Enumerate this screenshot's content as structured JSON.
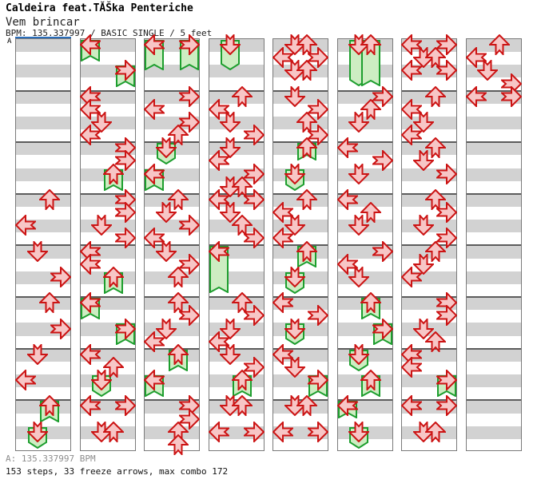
{
  "header": {
    "title": "Caldeira feat.TĂŠka Penteriche",
    "subtitle": "Vem brincar",
    "info_line": "BPM: 135.337997 / BASIC SINGLE / 5 feet"
  },
  "section_marker": {
    "label": "A"
  },
  "footer": {
    "bpm_line": "A: 135.337997 BPM",
    "stats_line": "153 steps, 33 freeze arrows, max combo 172"
  },
  "colors": {
    "band_gray": "#d2d2d2",
    "column_border": "#7a7a7a",
    "measure_line": "#5c5c5c",
    "section_a_blue": "#2a6ebb",
    "tap_fill": "#f7c6c6",
    "tap_border": "#cc1414",
    "freeze_fill": "#cdedc2",
    "freeze_border": "#1d9e2e",
    "footer_gray": "#8d8d8d"
  },
  "chart_data": {
    "type": "ddr-step-chart",
    "title": "Vem brincar",
    "artist": "Caldeira feat.TĂŠka Penteriche",
    "bpm": "135.337997",
    "difficulty": "BASIC SINGLE",
    "feet": 5,
    "steps": 153,
    "freeze_arrows": 33,
    "max_combo": 172,
    "columns": 8,
    "bands_per_column": 32,
    "beats_per_measure": 4,
    "lanes": [
      "left",
      "down",
      "up",
      "right"
    ],
    "note_format": "[column, band, lane, type(0=tap,1=freeze), tail_length_bands]",
    "notes": [
      [
        0,
        12,
        2,
        0
      ],
      [
        0,
        14,
        0,
        0
      ],
      [
        0,
        16,
        1,
        0
      ],
      [
        0,
        18,
        3,
        0
      ],
      [
        0,
        20,
        2,
        0
      ],
      [
        0,
        22,
        3,
        0
      ],
      [
        0,
        24,
        1,
        0
      ],
      [
        0,
        26,
        0,
        0
      ],
      [
        0,
        28,
        2,
        1,
        1.8
      ],
      [
        0,
        30,
        1,
        1,
        1.8
      ],
      [
        1,
        0,
        0,
        1,
        1.8
      ],
      [
        1,
        2,
        3,
        1,
        1.8
      ],
      [
        1,
        4,
        0,
        0
      ],
      [
        1,
        5,
        0,
        0
      ],
      [
        1,
        6,
        1,
        0
      ],
      [
        1,
        7,
        0,
        0
      ],
      [
        1,
        8,
        3,
        0
      ],
      [
        1,
        9,
        3,
        0
      ],
      [
        1,
        10,
        2,
        1,
        1.8
      ],
      [
        1,
        12,
        3,
        0
      ],
      [
        1,
        13,
        3,
        0
      ],
      [
        1,
        14,
        1,
        0
      ],
      [
        1,
        15,
        3,
        0
      ],
      [
        1,
        16,
        0,
        0
      ],
      [
        1,
        17,
        0,
        0
      ],
      [
        1,
        18,
        2,
        1,
        1.8
      ],
      [
        1,
        20,
        0,
        1,
        1.8
      ],
      [
        1,
        22,
        3,
        1,
        1.8
      ],
      [
        1,
        24,
        0,
        0
      ],
      [
        1,
        25,
        2,
        0
      ],
      [
        1,
        26,
        1,
        1,
        1.8
      ],
      [
        1,
        28,
        0,
        0
      ],
      [
        1,
        28,
        3,
        0
      ],
      [
        1,
        30,
        1,
        0
      ],
      [
        1,
        30,
        2,
        0
      ],
      [
        2,
        0,
        0,
        1,
        2.5
      ],
      [
        2,
        0,
        3,
        1,
        2.5
      ],
      [
        2,
        4,
        3,
        0
      ],
      [
        2,
        5,
        0,
        0
      ],
      [
        2,
        6,
        3,
        0
      ],
      [
        2,
        7,
        2,
        0
      ],
      [
        2,
        8,
        1,
        1,
        1.8
      ],
      [
        2,
        10,
        0,
        1,
        1.8
      ],
      [
        2,
        12,
        2,
        0
      ],
      [
        2,
        13,
        1,
        0
      ],
      [
        2,
        14,
        3,
        0
      ],
      [
        2,
        15,
        0,
        0
      ],
      [
        2,
        16,
        1,
        0
      ],
      [
        2,
        17,
        3,
        0
      ],
      [
        2,
        18,
        2,
        0
      ],
      [
        2,
        20,
        2,
        0
      ],
      [
        2,
        21,
        3,
        0
      ],
      [
        2,
        22,
        1,
        0
      ],
      [
        2,
        23,
        0,
        0
      ],
      [
        2,
        24,
        2,
        1,
        1.8
      ],
      [
        2,
        26,
        0,
        1,
        1.8
      ],
      [
        2,
        28,
        3,
        0
      ],
      [
        2,
        29,
        3,
        0
      ],
      [
        2,
        30,
        2,
        0
      ],
      [
        2,
        31,
        2,
        0
      ],
      [
        3,
        0,
        1,
        1,
        2.5
      ],
      [
        3,
        4,
        2,
        0
      ],
      [
        3,
        5,
        0,
        0
      ],
      [
        3,
        6,
        1,
        0
      ],
      [
        3,
        7,
        3,
        0
      ],
      [
        3,
        8,
        1,
        0
      ],
      [
        3,
        9,
        0,
        0
      ],
      [
        3,
        10,
        3,
        0
      ],
      [
        3,
        11,
        1,
        0
      ],
      [
        3,
        11,
        2,
        0
      ],
      [
        3,
        12,
        0,
        0
      ],
      [
        3,
        12,
        3,
        0
      ],
      [
        3,
        13,
        1,
        0
      ],
      [
        3,
        14,
        2,
        0
      ],
      [
        3,
        15,
        3,
        0
      ],
      [
        3,
        16,
        0,
        1,
        3.8
      ],
      [
        3,
        20,
        2,
        0
      ],
      [
        3,
        21,
        3,
        0
      ],
      [
        3,
        22,
        1,
        0
      ],
      [
        3,
        23,
        0,
        0
      ],
      [
        3,
        24,
        1,
        0
      ],
      [
        3,
        25,
        3,
        0
      ],
      [
        3,
        26,
        2,
        1,
        1.8
      ],
      [
        3,
        28,
        1,
        0
      ],
      [
        3,
        28,
        2,
        0
      ],
      [
        3,
        30,
        0,
        0
      ],
      [
        3,
        30,
        3,
        0
      ],
      [
        4,
        0,
        1,
        0
      ],
      [
        4,
        0,
        2,
        0
      ],
      [
        4,
        1,
        0,
        0
      ],
      [
        4,
        1,
        3,
        0
      ],
      [
        4,
        2,
        1,
        0
      ],
      [
        4,
        2,
        2,
        0
      ],
      [
        4,
        4,
        1,
        0
      ],
      [
        4,
        5,
        3,
        0
      ],
      [
        4,
        6,
        2,
        0
      ],
      [
        4,
        7,
        3,
        0
      ],
      [
        4,
        8,
        2,
        1,
        1.5
      ],
      [
        4,
        10,
        1,
        1,
        1.8
      ],
      [
        4,
        12,
        2,
        0
      ],
      [
        4,
        13,
        0,
        0
      ],
      [
        4,
        14,
        1,
        0
      ],
      [
        4,
        15,
        0,
        0
      ],
      [
        4,
        16,
        2,
        1,
        1.8
      ],
      [
        4,
        18,
        1,
        1,
        1.8
      ],
      [
        4,
        20,
        0,
        0
      ],
      [
        4,
        21,
        3,
        0
      ],
      [
        4,
        22,
        1,
        1,
        1.8
      ],
      [
        4,
        24,
        0,
        0
      ],
      [
        4,
        25,
        1,
        0
      ],
      [
        4,
        26,
        3,
        1,
        1.8
      ],
      [
        4,
        28,
        1,
        0
      ],
      [
        4,
        28,
        2,
        0
      ],
      [
        4,
        30,
        0,
        0
      ],
      [
        4,
        30,
        3,
        0
      ],
      [
        5,
        0,
        1,
        1,
        3.7
      ],
      [
        5,
        0,
        2,
        1,
        3.7
      ],
      [
        5,
        4,
        3,
        0
      ],
      [
        5,
        5,
        2,
        0
      ],
      [
        5,
        6,
        1,
        0
      ],
      [
        5,
        8,
        0,
        0
      ],
      [
        5,
        9,
        3,
        0
      ],
      [
        5,
        10,
        1,
        0
      ],
      [
        5,
        12,
        0,
        0
      ],
      [
        5,
        13,
        2,
        0
      ],
      [
        5,
        14,
        1,
        0
      ],
      [
        5,
        16,
        3,
        0
      ],
      [
        5,
        17,
        0,
        0
      ],
      [
        5,
        18,
        1,
        0
      ],
      [
        5,
        20,
        2,
        1,
        1.8
      ],
      [
        5,
        22,
        3,
        1,
        1.8
      ],
      [
        5,
        24,
        1,
        1,
        1.8
      ],
      [
        5,
        26,
        2,
        1,
        1.8
      ],
      [
        5,
        28,
        0,
        1,
        1.5
      ],
      [
        5,
        30,
        1,
        1,
        1.8
      ],
      [
        6,
        0,
        0,
        0
      ],
      [
        6,
        0,
        3,
        0
      ],
      [
        6,
        1,
        1,
        0
      ],
      [
        6,
        1,
        2,
        0
      ],
      [
        6,
        2,
        0,
        0
      ],
      [
        6,
        2,
        3,
        0
      ],
      [
        6,
        4,
        2,
        0
      ],
      [
        6,
        5,
        0,
        0
      ],
      [
        6,
        6,
        1,
        0
      ],
      [
        6,
        7,
        0,
        0
      ],
      [
        6,
        8,
        2,
        0
      ],
      [
        6,
        9,
        1,
        0
      ],
      [
        6,
        10,
        3,
        0
      ],
      [
        6,
        12,
        2,
        0
      ],
      [
        6,
        13,
        3,
        0
      ],
      [
        6,
        14,
        1,
        0
      ],
      [
        6,
        15,
        3,
        0
      ],
      [
        6,
        16,
        2,
        0
      ],
      [
        6,
        17,
        1,
        0
      ],
      [
        6,
        18,
        0,
        0
      ],
      [
        6,
        20,
        3,
        0
      ],
      [
        6,
        21,
        3,
        0
      ],
      [
        6,
        22,
        1,
        0
      ],
      [
        6,
        23,
        2,
        0
      ],
      [
        6,
        24,
        0,
        0
      ],
      [
        6,
        25,
        0,
        0
      ],
      [
        6,
        26,
        3,
        1,
        1.8
      ],
      [
        6,
        28,
        0,
        0
      ],
      [
        6,
        28,
        3,
        0
      ],
      [
        6,
        30,
        1,
        0
      ],
      [
        6,
        30,
        2,
        0
      ],
      [
        7,
        0,
        2,
        0
      ],
      [
        7,
        1,
        0,
        0
      ],
      [
        7,
        2,
        1,
        0
      ],
      [
        7,
        3,
        3,
        0
      ],
      [
        7,
        4,
        0,
        0
      ],
      [
        7,
        4,
        3,
        0
      ]
    ]
  }
}
